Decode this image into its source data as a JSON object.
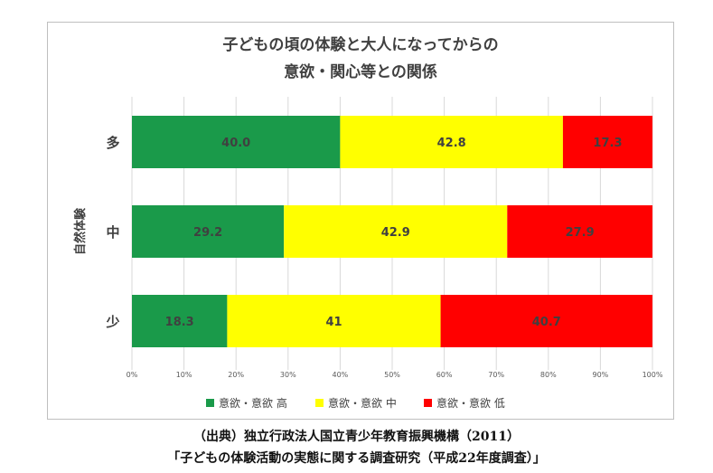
{
  "chart_data": {
    "type": "bar",
    "orientation": "horizontal",
    "stacked": true,
    "title_lines": [
      "子どもの頃の体験と大人になってからの",
      "意欲・関心等との関係"
    ],
    "ylabel": "自然体験",
    "categories": [
      "多",
      "中",
      "少"
    ],
    "series": [
      {
        "name": "意欲・意欲 高",
        "color": "#1a9a4a",
        "values": [
          40.0,
          29.2,
          18.3
        ],
        "labels": [
          "40.0",
          "29.2",
          "18.3"
        ]
      },
      {
        "name": "意欲・意欲 中",
        "color": "#ffff00",
        "values": [
          42.8,
          42.9,
          41
        ],
        "labels": [
          "42.8",
          "42.9",
          "41"
        ]
      },
      {
        "name": "意欲・意欲 低",
        "color": "#ff0000",
        "values": [
          17.3,
          27.9,
          40.7
        ],
        "labels": [
          "17.3",
          "27.9",
          "40.7"
        ]
      }
    ],
    "xlim": [
      0,
      100
    ],
    "xticks": [
      "0%",
      "10%",
      "20%",
      "30%",
      "40%",
      "50%",
      "60%",
      "70%",
      "80%",
      "90%",
      "100%"
    ],
    "grid": true,
    "legend_position": "bottom"
  },
  "caption": {
    "line1": "（出典）独立行政法人国立青少年教育振興機構（2011）",
    "line2": "「子どもの体験活動の実態に関する調査研究（平成22年度調査）」"
  }
}
